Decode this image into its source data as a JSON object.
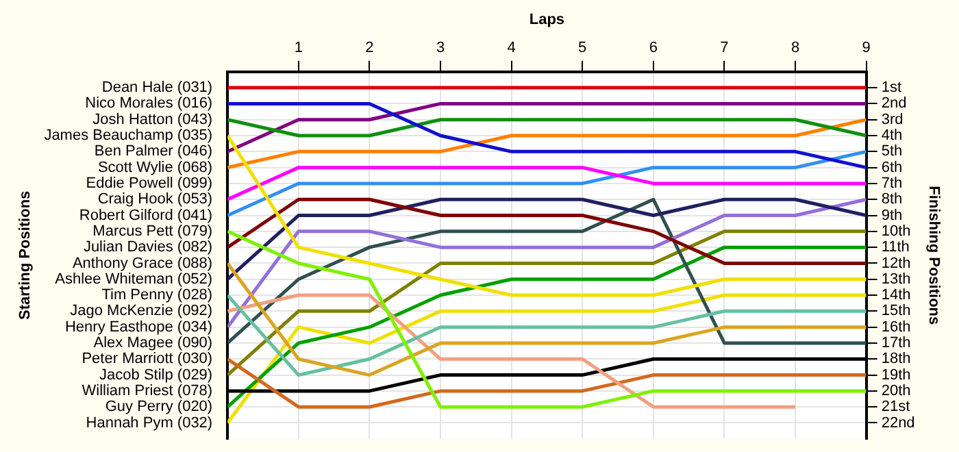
{
  "chart_data": {
    "type": "line",
    "xlabel": "Laps",
    "ylabel": "Finishing Positions",
    "x": [
      0,
      1,
      2,
      3,
      4,
      5,
      6,
      7,
      8,
      9
    ],
    "xlim": [
      0,
      9
    ],
    "xticks": [
      1,
      2,
      3,
      4,
      5,
      6,
      7,
      8,
      9
    ],
    "annotations": [
      "Starting Positions",
      "Dean Hale (031)",
      "Nico Morales (016)",
      "Josh Hatton (043)",
      "James Beauchamp (035)",
      "Ben Palmer (046)",
      "Scott Wylie (068)",
      "Eddie Powell (099)",
      "Craig Hook (053)",
      "Robert Gilford (041)",
      "Marcus Pett (079)",
      "Julian Davies (082)",
      "Anthony Grace (088)",
      "Ashlee Whiteman (052)",
      "Tim Penny (028)",
      "Jago McKenzie (092)",
      "Henry Easthope (034)",
      "Alex Magee (090)",
      "Peter Marriott (030)",
      "Jacob Stilp (029)",
      "William Priest (078)",
      "Guy Perry (020)",
      "Hannah Pym (032)"
    ],
    "ylim": [
      23,
      0
    ],
    "yticks": [
      {
        "value": 1,
        "label": "1st"
      },
      {
        "value": 2,
        "label": "2nd"
      },
      {
        "value": 3,
        "label": "3rd"
      },
      {
        "value": 4,
        "label": "4th"
      },
      {
        "value": 5,
        "label": "5th"
      },
      {
        "value": 6,
        "label": "6th"
      },
      {
        "value": 7,
        "label": "7th"
      },
      {
        "value": 8,
        "label": "8th"
      },
      {
        "value": 9,
        "label": "9th"
      },
      {
        "value": 10,
        "label": "10th"
      },
      {
        "value": 11,
        "label": "11th"
      },
      {
        "value": 12,
        "label": "12th"
      },
      {
        "value": 13,
        "label": "13th"
      },
      {
        "value": 14,
        "label": "14th"
      },
      {
        "value": 15,
        "label": "15th"
      },
      {
        "value": 16,
        "label": "16th"
      },
      {
        "value": 17,
        "label": "17th"
      },
      {
        "value": 18,
        "label": "18th"
      },
      {
        "value": 19,
        "label": "19th"
      },
      {
        "value": 20,
        "label": "20th"
      },
      {
        "value": 21,
        "label": "21st"
      },
      {
        "value": 22,
        "label": "22nd"
      }
    ],
    "grid": true,
    "legend": false,
    "marker": "none",
    "line_style": "solid",
    "series": [
      {
        "color": "#e00000",
        "values": [
          1,
          1,
          1,
          1,
          1,
          1,
          1,
          1,
          1,
          1
        ]
      },
      {
        "color": "#1010d0",
        "values": [
          2,
          2,
          2,
          4,
          5,
          5,
          5,
          5,
          5,
          6
        ]
      },
      {
        "color": "#109010",
        "values": [
          3,
          4,
          4,
          3,
          3,
          3,
          3,
          3,
          3,
          4
        ]
      },
      {
        "color": "#f0e000",
        "values": [
          4,
          11,
          12,
          13,
          14,
          14,
          14,
          13,
          13,
          13
        ]
      },
      {
        "color": "#800080",
        "values": [
          5,
          3,
          3,
          2,
          2,
          2,
          2,
          2,
          2,
          2
        ]
      },
      {
        "color": "#ff8000",
        "values": [
          6,
          5,
          5,
          5,
          4,
          4,
          4,
          4,
          4,
          3
        ]
      },
      {
        "color": "#ff00ff",
        "values": [
          8,
          6,
          6,
          6,
          6,
          6,
          7,
          7,
          7,
          7
        ]
      },
      {
        "color": "#3090f0",
        "values": [
          9,
          7,
          7,
          7,
          7,
          7,
          6,
          6,
          6,
          5
        ]
      },
      {
        "color": "#80f000",
        "values": [
          10,
          12,
          13,
          21,
          21,
          21,
          20,
          20,
          20,
          20
        ]
      },
      {
        "color": "#800000",
        "values": [
          11,
          8,
          8,
          9,
          9,
          9,
          10,
          12,
          12,
          12
        ]
      },
      {
        "color": "#daa520",
        "values": [
          12,
          18,
          19,
          17,
          17,
          17,
          17,
          16,
          16,
          16
        ]
      },
      {
        "color": "#202060",
        "values": [
          13,
          9,
          9,
          8,
          8,
          8,
          9,
          8,
          8,
          9
        ]
      },
      {
        "color": "#66c0a0",
        "values": [
          14,
          19,
          18,
          16,
          16,
          16,
          16,
          15,
          15,
          15
        ]
      },
      {
        "color": "#f0a080",
        "values": [
          15,
          14,
          14,
          18,
          18,
          18,
          21,
          21,
          21,
          null
        ]
      },
      {
        "color": "#9370db",
        "values": [
          16,
          10,
          10,
          11,
          11,
          11,
          11,
          9,
          9,
          8
        ]
      },
      {
        "color": "#305050",
        "values": [
          17,
          13,
          11,
          10,
          10,
          10,
          8,
          17,
          17,
          17
        ]
      },
      {
        "color": "#d2691e",
        "values": [
          18,
          21,
          21,
          20,
          20,
          20,
          19,
          19,
          19,
          19
        ]
      },
      {
        "color": "#808000",
        "values": [
          19,
          15,
          15,
          12,
          12,
          12,
          12,
          10,
          10,
          10
        ]
      },
      {
        "color": "#000000",
        "values": [
          20,
          20,
          20,
          19,
          19,
          19,
          18,
          18,
          18,
          18
        ]
      },
      {
        "color": "#00a000",
        "values": [
          21,
          17,
          16,
          14,
          13,
          13,
          13,
          11,
          11,
          11
        ]
      },
      {
        "color": "#f0e000",
        "values": [
          22,
          16,
          17,
          15,
          15,
          15,
          15,
          14,
          14,
          14
        ]
      }
    ]
  }
}
